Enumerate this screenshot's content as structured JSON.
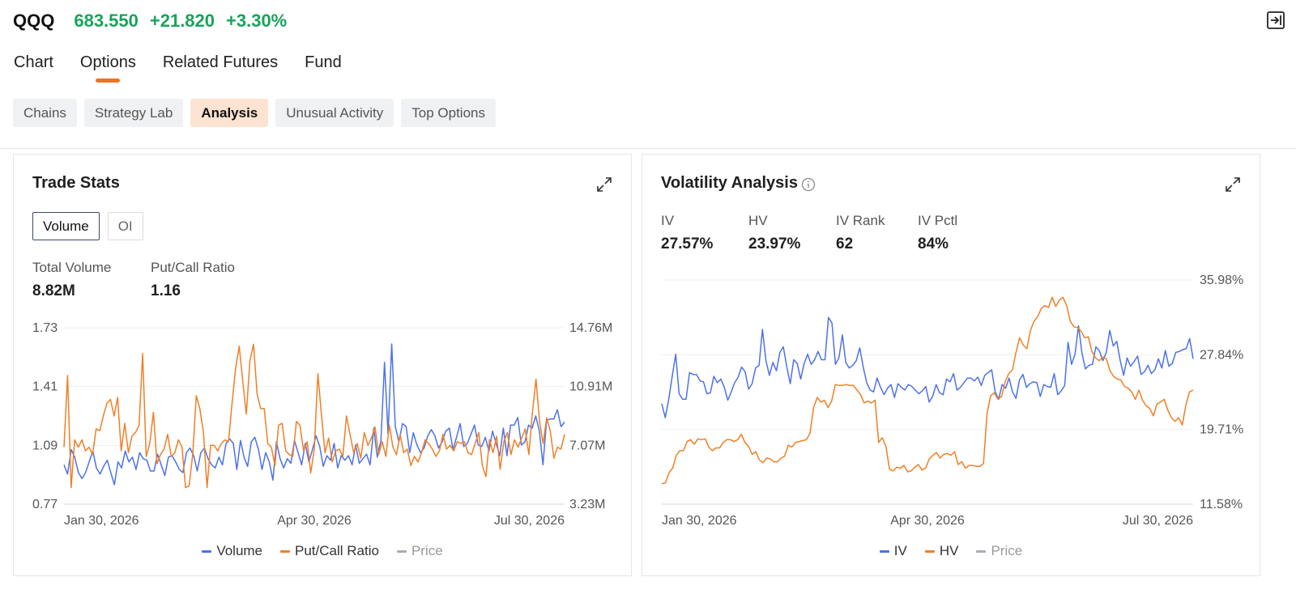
{
  "header": {
    "ticker": "QQQ",
    "price": "683.550",
    "change": "+21.820",
    "change_pct": "+3.30%"
  },
  "main_tabs": [
    {
      "label": "Chart",
      "active": false
    },
    {
      "label": "Options",
      "active": true
    },
    {
      "label": "Related Futures",
      "active": false
    },
    {
      "label": "Fund",
      "active": false
    }
  ],
  "sub_tabs": [
    {
      "label": "Chains",
      "active": false
    },
    {
      "label": "Strategy Lab",
      "active": false
    },
    {
      "label": "Analysis",
      "active": true
    },
    {
      "label": "Unusual Activity",
      "active": false
    },
    {
      "label": "Top Options",
      "active": false
    }
  ],
  "colors": {
    "accent": "#f0731f",
    "up": "#19a35b",
    "blue": "#4d72e8",
    "orange": "#f07f26",
    "gray": "#a8adb7"
  },
  "trade_stats": {
    "title": "Trade Stats",
    "toggle": [
      {
        "label": "Volume",
        "active": true
      },
      {
        "label": "OI",
        "active": false
      }
    ],
    "stats": [
      {
        "label": "Total Volume",
        "value": "8.82M"
      },
      {
        "label": "Put/Call Ratio",
        "value": "1.16"
      }
    ],
    "legend": [
      {
        "label": "Volume",
        "color": "#4d72e8"
      },
      {
        "label": "Put/Call Ratio",
        "color": "#f07f26"
      },
      {
        "label": "Price",
        "color": "#a8adb7",
        "muted": true
      }
    ]
  },
  "volatility": {
    "title": "Volatility Analysis",
    "stats": [
      {
        "label": "IV",
        "value": "27.57%"
      },
      {
        "label": "HV",
        "value": "23.97%"
      },
      {
        "label": "IV Rank",
        "value": "62"
      },
      {
        "label": "IV Pctl",
        "value": "84%"
      }
    ],
    "legend": [
      {
        "label": "IV",
        "color": "#4d72e8"
      },
      {
        "label": "HV",
        "color": "#f07f26"
      },
      {
        "label": "Price",
        "color": "#a8adb7",
        "muted": true
      }
    ]
  },
  "chart_data": [
    {
      "type": "line",
      "title": "Trade Stats",
      "x_labels": [
        "Jan 30, 2026",
        "Apr 30, 2026",
        "Jul 30, 2026"
      ],
      "y_left_ticks": [
        "1.73",
        "1.41",
        "1.09",
        "0.77"
      ],
      "y_right_ticks": [
        "14.76M",
        "10.91M",
        "7.07M",
        "3.23M"
      ],
      "y_left_range": [
        0.77,
        1.73
      ],
      "y_right_range": [
        3.23,
        14.76
      ],
      "y_right_unit": "M",
      "series": [
        {
          "name": "Volume",
          "axis": "right",
          "color": "#4d72e8",
          "values": [
            5.8,
            5.2,
            6.8,
            6.3,
            5.3,
            4.9,
            5.3,
            6.0,
            6.7,
            5.6,
            5.2,
            5.7,
            6.1,
            5.3,
            4.5,
            6.0,
            5.6,
            6.7,
            6.0,
            6.3,
            5.5,
            6.6,
            6.2,
            6.1,
            5.4,
            5.4,
            6.5,
            5.8,
            5.1,
            6.3,
            6.4,
            6.0,
            5.5,
            5.3,
            6.6,
            6.9,
            6.4,
            5.4,
            6.6,
            6.9,
            6.2,
            5.8,
            5.6,
            6.3,
            5.8,
            7.2,
            7.5,
            7.2,
            5.5,
            7.4,
            6.3,
            5.7,
            7.3,
            7.6,
            6.8,
            5.5,
            6.6,
            6.0,
            4.8,
            7.3,
            6.2,
            5.6,
            6.2,
            5.9,
            7.4,
            6.6,
            5.8,
            7.2,
            6.0,
            6.8,
            7.7,
            7.0,
            5.7,
            6.4,
            6.1,
            7.2,
            5.6,
            6.4,
            6.1,
            6.4,
            5.8,
            7.1,
            5.9,
            6.2,
            6.5,
            5.8,
            8.2,
            6.3,
            7.4,
            12.5,
            7.8,
            13.7,
            8.3,
            7.3,
            8.5,
            8.3,
            6.6,
            7.9,
            7.1,
            6.6,
            6.9,
            7.7,
            8.1,
            7.7,
            6.9,
            7.3,
            8.0,
            8.2,
            6.8,
            7.6,
            8.5,
            7.0,
            7.2,
            7.8,
            8.4,
            7.1,
            7.0,
            7.6,
            6.7,
            8.0,
            7.2,
            6.4,
            8.2,
            6.4,
            8.4,
            8.4,
            8.9,
            7.1,
            7.3,
            8.4,
            8.2,
            9.0,
            8.0,
            5.8,
            8.7,
            8.8,
            8.8,
            9.4,
            8.3,
            8.6
          ]
        },
        {
          "name": "Put/Call Ratio",
          "axis": "left",
          "color": "#f07f26",
          "values": [
            1.08,
            1.47,
            0.86,
            1.12,
            1.08,
            1.12,
            1.06,
            1.08,
            1.04,
            1.18,
            1.17,
            1.25,
            1.32,
            1.34,
            1.25,
            1.35,
            1.06,
            1.21,
            1.05,
            1.14,
            1.16,
            1.2,
            1.59,
            1.03,
            1.1,
            1.27,
            0.99,
            1.04,
            1.07,
            1.15,
            1.03,
            1.05,
            1.12,
            1.08,
            0.86,
            0.87,
            1.04,
            1.36,
            1.29,
            1.16,
            0.86,
            1.09,
            1.09,
            1.06,
            1.1,
            1.12,
            1.11,
            1.32,
            1.51,
            1.63,
            1.44,
            1.26,
            1.55,
            1.64,
            1.37,
            1.29,
            1.29,
            1.1,
            1.08,
            0.98,
            1.2,
            1.21,
            1.06,
            1.04,
            1.03,
            1.22,
            1.2,
            1.06,
            1.11,
            0.94,
            1.07,
            1.48,
            1.26,
            1.05,
            1.13,
            1.0,
            1.06,
            1.07,
            1.03,
            1.25,
            1.15,
            1.05,
            1.1,
            1.02,
            1.16,
            1.09,
            1.13,
            1.19,
            1.04,
            1.11,
            1.03,
            1.2,
            1.08,
            1.04,
            1.15,
            1.05,
            1.07,
            0.98,
            1.03,
            1.0,
            1.05,
            1.12,
            1.1,
            1.07,
            1.03,
            1.06,
            1.15,
            1.07,
            1.09,
            1.06,
            1.11,
            1.1,
            1.11,
            1.05,
            1.04,
            1.1,
            1.16,
            0.98,
            0.92,
            1.12,
            1.05,
            1.14,
            0.96,
            1.11,
            1.16,
            1.04,
            1.12,
            1.08,
            1.13,
            1.18,
            1.04,
            1.27,
            1.45,
            1.22,
            1.1,
            1.24,
            1.17,
            1.02,
            1.08,
            1.07,
            1.15
          ]
        },
        {
          "name": "Price",
          "axis": "none",
          "color": "#a8adb7",
          "values": []
        }
      ]
    },
    {
      "type": "line",
      "title": "Volatility Analysis",
      "x_labels": [
        "Jan 30, 2026",
        "Apr 30, 2026",
        "Jul 30, 2026"
      ],
      "y_ticks": [
        "35.98%",
        "27.84%",
        "19.71%",
        "11.58%"
      ],
      "y_range": [
        11.58,
        35.98
      ],
      "series": [
        {
          "name": "IV",
          "color": "#4d72e8",
          "values": [
            22.5,
            21.0,
            23.0,
            25.5,
            27.9,
            23.6,
            23.0,
            23.0,
            25.9,
            25.7,
            25.7,
            25.0,
            24.9,
            23.6,
            23.7,
            25.5,
            24.8,
            25.2,
            24.3,
            22.9,
            23.8,
            24.8,
            25.4,
            26.5,
            26.0,
            24.1,
            24.7,
            26.4,
            26.7,
            30.6,
            27.2,
            25.6,
            27.0,
            26.1,
            28.1,
            28.7,
            26.5,
            24.7,
            27.3,
            26.9,
            25.2,
            26.9,
            27.9,
            26.8,
            27.3,
            28.2,
            27.3,
            27.3,
            31.9,
            31.3,
            26.8,
            27.5,
            30.0,
            27.0,
            26.4,
            26.7,
            27.2,
            28.6,
            26.5,
            24.8,
            24.0,
            23.8,
            25.3,
            24.3,
            23.5,
            24.2,
            24.6,
            23.2,
            24.7,
            24.3,
            24.0,
            24.6,
            24.4,
            24.0,
            23.6,
            23.9,
            24.4,
            22.7,
            23.3,
            24.6,
            23.7,
            23.5,
            25.2,
            24.9,
            25.8,
            24.0,
            24.3,
            24.8,
            25.3,
            25.3,
            25.0,
            25.4,
            24.5,
            25.6,
            25.9,
            26.2,
            23.8,
            23.0,
            24.6,
            24.2,
            25.3,
            23.8,
            23.1,
            25.1,
            25.7,
            24.3,
            24.7,
            24.9,
            24.8,
            23.3,
            24.6,
            24.4,
            24.3,
            25.8,
            23.5,
            23.9,
            24.5,
            29.2,
            26.8,
            27.9,
            31.0,
            28.0,
            26.3,
            26.7,
            26.8,
            28.7,
            28.3,
            27.2,
            28.1,
            30.5,
            28.8,
            29.3,
            27.2,
            25.6,
            27.5,
            26.6,
            27.1,
            27.7,
            25.7,
            26.0,
            26.7,
            25.8,
            26.2,
            27.4,
            26.4,
            28.3,
            26.6,
            26.9,
            28.1,
            28.2,
            28.4,
            28.5,
            29.6,
            27.4
          ]
        },
        {
          "name": "HV",
          "color": "#f07f26",
          "values": [
            13.8,
            13.9,
            15.0,
            15.5,
            16.9,
            17.4,
            17.4,
            18.4,
            18.6,
            18.1,
            18.7,
            18.6,
            18.7,
            17.8,
            17.4,
            17.7,
            17.7,
            18.3,
            18.6,
            18.6,
            18.4,
            18.6,
            19.2,
            18.3,
            17.9,
            17.0,
            17.3,
            16.4,
            16.1,
            16.6,
            16.5,
            16.2,
            16.2,
            16.6,
            16.8,
            18.0,
            17.8,
            18.3,
            18.4,
            18.5,
            18.6,
            19.3,
            22.1,
            23.2,
            22.7,
            22.9,
            22.1,
            22.8,
            24.6,
            24.5,
            24.5,
            24.6,
            24.5,
            24.5,
            24.0,
            23.5,
            22.6,
            22.8,
            22.6,
            22.9,
            18.3,
            18.8,
            17.9,
            15.4,
            15.2,
            15.6,
            15.5,
            15.8,
            15.1,
            15.2,
            15.6,
            15.9,
            15.3,
            15.5,
            16.5,
            16.9,
            17.2,
            16.6,
            17.0,
            17.1,
            16.9,
            17.3,
            15.9,
            16.2,
            15.5,
            15.8,
            15.8,
            15.7,
            15.7,
            16.0,
            21.5,
            23.4,
            23.7,
            23.0,
            23.3,
            24.9,
            25.8,
            26.2,
            28.1,
            29.7,
            28.9,
            28.5,
            30.5,
            31.5,
            32.0,
            32.9,
            33.2,
            33.0,
            34.1,
            33.1,
            33.8,
            34.1,
            33.2,
            31.5,
            30.9,
            30.8,
            30.4,
            29.7,
            29.8,
            28.2,
            27.5,
            27.2,
            27.6,
            27.4,
            26.1,
            25.5,
            25.2,
            25.1,
            24.4,
            24.2,
            23.8,
            23.0,
            24.0,
            22.9,
            22.3,
            22.0,
            21.2,
            22.5,
            22.7,
            23.0,
            21.8,
            21.0,
            20.6,
            21.0,
            20.2,
            22.4,
            23.8,
            24.0
          ]
        },
        {
          "name": "Price",
          "color": "#a8adb7",
          "values": []
        }
      ]
    }
  ]
}
